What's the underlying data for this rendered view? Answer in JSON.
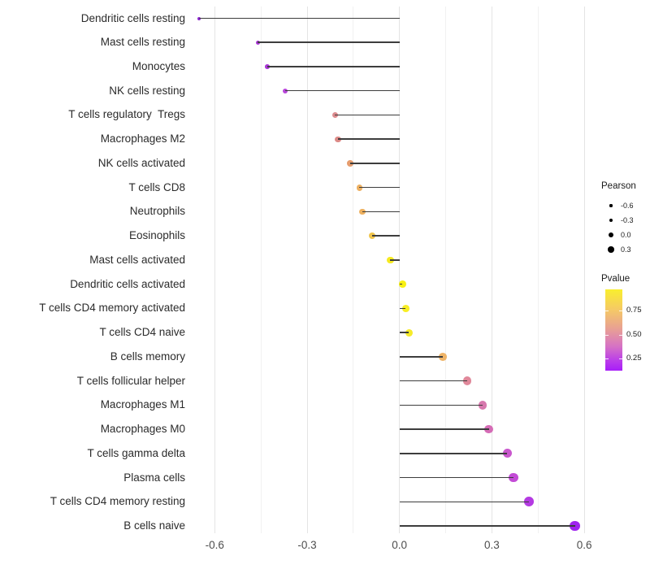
{
  "figure": {
    "background": "#ffffff"
  },
  "chart_data": {
    "type": "lollipop",
    "orientation": "horizontal",
    "title": "",
    "xlabel": "",
    "ylabel": "",
    "x_axis": {
      "range": [
        -0.672,
        0.647
      ],
      "major_ticks": [
        -0.6,
        -0.3,
        0.0,
        0.3,
        0.6
      ],
      "tick_labels": [
        "-0.6",
        "-0.3",
        "0.0",
        "0.3",
        "0.6"
      ],
      "minor_ticks": [
        -0.45,
        -0.15,
        0.15,
        0.45
      ],
      "grid": "vertical-only"
    },
    "rows": [
      {
        "label": "Dendritic cells resting",
        "pearson": -0.65,
        "dot_color": "#8e25d2"
      },
      {
        "label": "Mast cells resting",
        "pearson": -0.46,
        "dot_color": "#a935d5"
      },
      {
        "label": "Monocytes",
        "pearson": -0.43,
        "dot_color": "#aa36d8"
      },
      {
        "label": "NK cells resting",
        "pearson": -0.37,
        "dot_color": "#b846da"
      },
      {
        "label": "T cells regulatory  Tregs",
        "pearson": -0.21,
        "dot_color": "#dc8b8e"
      },
      {
        "label": "Macrophages M2",
        "pearson": -0.2,
        "dot_color": "#dc8a87"
      },
      {
        "label": "NK cells activated",
        "pearson": -0.16,
        "dot_color": "#e69d6e"
      },
      {
        "label": "T cells CD8",
        "pearson": -0.13,
        "dot_color": "#edb062"
      },
      {
        "label": "Neutrophils",
        "pearson": -0.12,
        "dot_color": "#eeb05e"
      },
      {
        "label": "Eosinophils",
        "pearson": -0.09,
        "dot_color": "#f0c54c"
      },
      {
        "label": "Mast cells activated",
        "pearson": -0.03,
        "dot_color": "#f6ea21"
      },
      {
        "label": "Dendritic cells activated",
        "pearson": 0.01,
        "dot_color": "#f8f011"
      },
      {
        "label": "T cells CD4 memory activated",
        "pearson": 0.02,
        "dot_color": "#f8ee24"
      },
      {
        "label": "T cells CD4 naive",
        "pearson": 0.03,
        "dot_color": "#f6eb29"
      },
      {
        "label": "B cells memory",
        "pearson": 0.14,
        "dot_color": "#efb468"
      },
      {
        "label": "T cells follicular helper",
        "pearson": 0.22,
        "dot_color": "#e0889a"
      },
      {
        "label": "Macrophages M1",
        "pearson": 0.27,
        "dot_color": "#d778ad"
      },
      {
        "label": "Macrophages M0",
        "pearson": 0.29,
        "dot_color": "#d56cb6"
      },
      {
        "label": "T cells gamma delta",
        "pearson": 0.35,
        "dot_color": "#c957cd"
      },
      {
        "label": "Plasma cells",
        "pearson": 0.37,
        "dot_color": "#c34bd6"
      },
      {
        "label": "T cells CD4 memory resting",
        "pearson": 0.42,
        "dot_color": "#b43ae2"
      },
      {
        "label": "B cells naive",
        "pearson": 0.57,
        "dot_color": "#9f24ee"
      }
    ],
    "legend_size": {
      "title": "Pearson",
      "entries": [
        {
          "label": "-0.6",
          "value": -0.6
        },
        {
          "label": "-0.3",
          "value": -0.3
        },
        {
          "label": "0.0",
          "value": 0.0
        },
        {
          "label": "0.3",
          "value": 0.3
        }
      ],
      "key_color": "#000000"
    },
    "legend_color": {
      "title": "Pvalue",
      "ticks": [
        {
          "label": "0.75",
          "percent_from_top": 26
        },
        {
          "label": "0.50",
          "percent_from_top": 56
        },
        {
          "label": "0.25",
          "percent_from_top": 85
        }
      ],
      "gradient_stops": [
        {
          "pos": 0,
          "color": "#f9ef2e"
        },
        {
          "pos": 25,
          "color": "#f5c966"
        },
        {
          "pos": 50,
          "color": "#e79d97"
        },
        {
          "pos": 70,
          "color": "#d673c4"
        },
        {
          "pos": 87,
          "color": "#bb3fe8"
        },
        {
          "pos": 100,
          "color": "#a81ef9"
        }
      ]
    },
    "style": {
      "stem_color": "#3d3d3d",
      "major_grid_color": "#e4e4e4",
      "minor_grid_color": "#f1f1f1"
    }
  }
}
